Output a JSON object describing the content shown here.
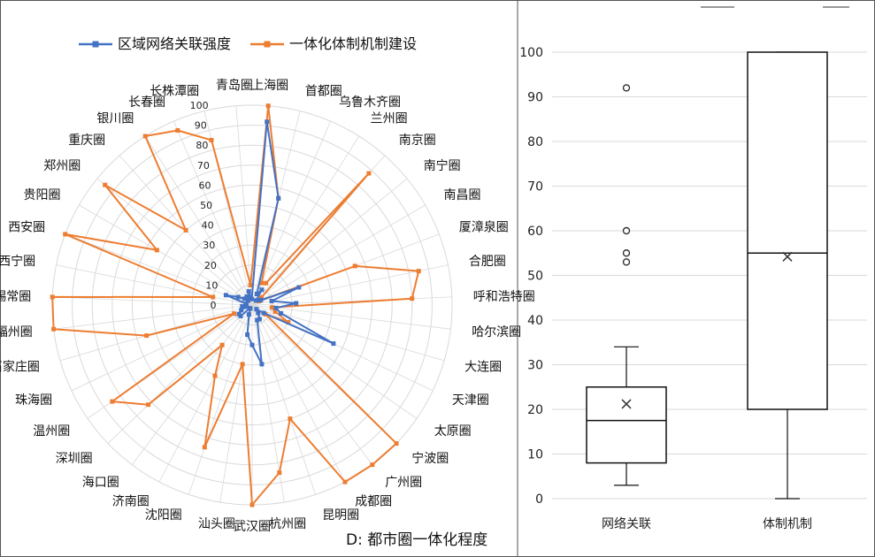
{
  "panel_label": "D: 都市圈一体化程度",
  "colors": {
    "network": "#4472C4",
    "institution": "#ED7D31",
    "grid": "#d9d9d9",
    "frame": "#555555"
  },
  "chart_data": [
    {
      "type": "radar",
      "legend_position": "top",
      "series": [
        {
          "name": "区域网络关联强度"
        },
        {
          "name": "一体化体制机制建设"
        }
      ],
      "categories": [
        "上海圈",
        "首都圈",
        "乌鲁木齐圈",
        "兰州圈",
        "南京圈",
        "南宁圈",
        "南昌圈",
        "厦漳泉圈",
        "合肥圈",
        "呼和浩特圈",
        "哈尔滨圈",
        "大连圈",
        "天津圈",
        "太原圈",
        "宁波圈",
        "广州圈",
        "成都圈",
        "昆明圈",
        "杭州圈",
        "武汉圈",
        "汕头圈",
        "沈阳圈",
        "济南圈",
        "海口圈",
        "深圳圈",
        "温州圈",
        "珠海圈",
        "石家庄圈",
        "福州圈",
        "苏锡常圈",
        "西宁圈",
        "西安圈",
        "贵阳圈",
        "郑州圈",
        "重庆圈",
        "银川圈",
        "长春圈",
        "长株潭圈",
        "青岛圈"
      ],
      "network_values": [
        92,
        55,
        6,
        9,
        3,
        4,
        5,
        25,
        10,
        22,
        12,
        15,
        45,
        7,
        3,
        5,
        8,
        8,
        30,
        20,
        15,
        5,
        2,
        2,
        8,
        8,
        6,
        3,
        5,
        3,
        3,
        14,
        8,
        5,
        3,
        5,
        4,
        7,
        3
      ],
      "institution_values": [
        100,
        55,
        12,
        13,
        88,
        6,
        4,
        55,
        85,
        80,
        10,
        12,
        20,
        8,
        100,
        100,
        100,
        60,
        85,
        100,
        30,
        75,
        40,
        25,
        72,
        85,
        10,
        55,
        100,
        100,
        20,
        100,
        55,
        95,
        50,
        100,
        95,
        85,
        10
      ],
      "radial_ticks": [
        0,
        10,
        20,
        30,
        40,
        50,
        60,
        70,
        80,
        90,
        100
      ]
    },
    {
      "type": "boxplot",
      "categories": [
        "网络关联",
        "体制机制"
      ],
      "ylim": [
        0,
        100
      ],
      "yticks": [
        0,
        10,
        20,
        30,
        40,
        50,
        60,
        70,
        80,
        90,
        100
      ],
      "boxes": [
        {
          "whisker_low": 3,
          "q1": 8,
          "median": 17.5,
          "q3": 25,
          "whisker_high": 34,
          "mean": 21.2,
          "outliers": [
            53,
            55,
            60,
            92
          ]
        },
        {
          "whisker_low": 0,
          "q1": 20,
          "median": 55,
          "q3": 100,
          "whisker_high": 100,
          "mean": 54.2,
          "outliers": []
        }
      ]
    }
  ]
}
